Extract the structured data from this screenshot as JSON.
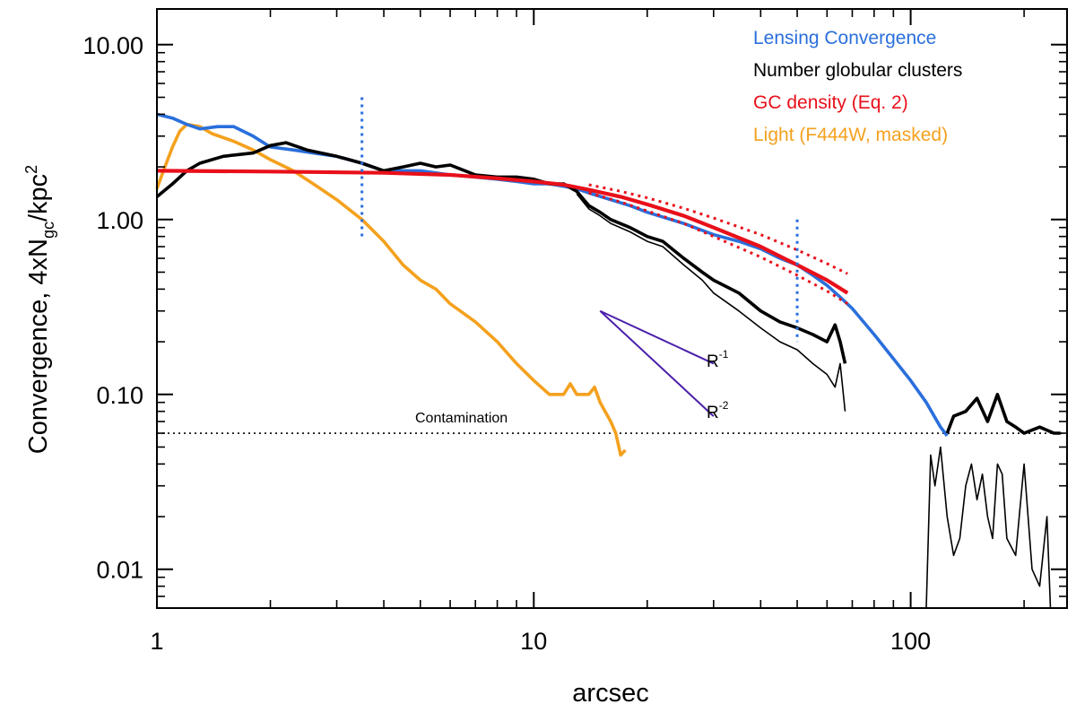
{
  "chart_data": {
    "type": "line",
    "xlabel": "arcsec",
    "ylabel_parts": [
      "Convergence, 4xN",
      "gc",
      "/kpc",
      "2"
    ],
    "x_scale": "log",
    "y_scale": "log",
    "xlim": [
      1,
      260
    ],
    "ylim": [
      0.006,
      16
    ],
    "x_ticks": [
      1,
      10,
      100
    ],
    "x_tick_labels": [
      "1",
      "10",
      "100"
    ],
    "y_ticks": [
      0.01,
      0.1,
      1,
      10
    ],
    "y_tick_labels": [
      "0.01",
      "0.10",
      "1.00",
      "10.00"
    ],
    "legend_position": "top-right",
    "colors": {
      "lensing": "#2a6fdc",
      "gc_number": "#000000",
      "gc_density": "#e8101a",
      "light": "#f4a11e",
      "slope": "#4b1faa"
    },
    "legend": [
      {
        "label": "Lensing Convergence",
        "color": "#2a6fdc"
      },
      {
        "label": "Number globular clusters",
        "color": "#000000"
      },
      {
        "label": "GC density (Eq. 2)",
        "color": "#e8101a"
      },
      {
        "label": "Light (F444W, masked)",
        "color": "#f4a11e"
      }
    ],
    "series": [
      {
        "key": "lensing",
        "x": [
          1.0,
          1.1,
          1.2,
          1.3,
          1.45,
          1.6,
          1.8,
          2.0,
          2.3,
          2.6,
          3.0,
          3.5,
          4.0,
          5.0,
          6.0,
          7.0,
          8.0,
          9.0,
          10.0,
          11.0,
          12.0,
          13.0,
          14.0,
          16.0,
          18.0,
          20.0,
          25.0,
          30.0,
          35.0,
          40.0,
          45.0,
          50.0,
          55.0,
          60.0,
          65.0,
          70.0,
          80.0,
          90.0,
          100.0,
          110.0,
          120.0,
          125.0
        ],
        "y": [
          4.0,
          3.8,
          3.5,
          3.3,
          3.4,
          3.4,
          3.0,
          2.6,
          2.5,
          2.4,
          2.3,
          2.1,
          1.9,
          1.9,
          1.8,
          1.75,
          1.7,
          1.65,
          1.6,
          1.6,
          1.55,
          1.5,
          1.42,
          1.3,
          1.2,
          1.1,
          0.95,
          0.82,
          0.75,
          0.68,
          0.6,
          0.55,
          0.48,
          0.42,
          0.36,
          0.31,
          0.22,
          0.16,
          0.12,
          0.09,
          0.065,
          0.058
        ]
      },
      {
        "key": "gc_number",
        "x": [
          1.0,
          1.1,
          1.2,
          1.3,
          1.5,
          1.8,
          2.0,
          2.2,
          2.5,
          3.0,
          3.5,
          4.0,
          4.5,
          5.0,
          5.5,
          6.0,
          7.0,
          8.0,
          9.0,
          10.0,
          11.0,
          12.0,
          13.0,
          14.0,
          15.0,
          16.0,
          18.0,
          20.0,
          22.0,
          25.0,
          28.0,
          30.0,
          35.0,
          40.0,
          45.0,
          50.0,
          55.0,
          60.0,
          63.0,
          65.0,
          67.0
        ],
        "y": [
          1.35,
          1.6,
          1.9,
          2.1,
          2.3,
          2.4,
          2.65,
          2.75,
          2.5,
          2.3,
          2.1,
          1.9,
          2.0,
          2.1,
          2.0,
          2.05,
          1.8,
          1.75,
          1.75,
          1.7,
          1.6,
          1.6,
          1.45,
          1.2,
          1.1,
          1.0,
          0.9,
          0.8,
          0.75,
          0.6,
          0.5,
          0.45,
          0.38,
          0.3,
          0.26,
          0.24,
          0.22,
          0.2,
          0.25,
          0.2,
          0.15
        ]
      },
      {
        "key": "gc_number_thin",
        "x": [
          13.0,
          14.0,
          15.0,
          16.0,
          18.0,
          20.0,
          22.0,
          25.0,
          28.0,
          30.0,
          35.0,
          40.0,
          45.0,
          50.0,
          55.0,
          60.0,
          63.0,
          65.0,
          67.0
        ],
        "y": [
          1.4,
          1.15,
          1.05,
          0.95,
          0.85,
          0.75,
          0.7,
          0.55,
          0.45,
          0.38,
          0.3,
          0.24,
          0.2,
          0.18,
          0.15,
          0.13,
          0.11,
          0.15,
          0.08
        ]
      },
      {
        "key": "gc_number_outer",
        "x": [
          125.0,
          130.0,
          140.0,
          150.0,
          160.0,
          170.0,
          180.0,
          190.0,
          200.0,
          220.0,
          240.0,
          250.0
        ],
        "y": [
          0.06,
          0.075,
          0.08,
          0.095,
          0.07,
          0.1,
          0.07,
          0.065,
          0.06,
          0.065,
          0.06,
          0.06
        ]
      },
      {
        "key": "gc_number_outer_thin",
        "x": [
          110.0,
          113.0,
          116.0,
          120.0,
          125.0,
          130.0,
          135.0,
          140.0,
          145.0,
          150.0,
          155.0,
          160.0,
          165.0,
          170.0,
          175.0,
          180.0,
          190.0,
          200.0,
          210.0,
          220.0,
          230.0,
          235.0
        ],
        "y": [
          0.005,
          0.045,
          0.03,
          0.05,
          0.02,
          0.012,
          0.015,
          0.03,
          0.04,
          0.025,
          0.035,
          0.02,
          0.015,
          0.04,
          0.035,
          0.015,
          0.012,
          0.04,
          0.01,
          0.008,
          0.02,
          0.005
        ]
      },
      {
        "key": "gc_density",
        "x": [
          1.0,
          2.0,
          4.0,
          6.0,
          8.0,
          10.0,
          12.0,
          14.0,
          17.0,
          20.0,
          25.0,
          30.0,
          40.0,
          50.0,
          60.0,
          68.0
        ],
        "y": [
          1.9,
          1.88,
          1.85,
          1.8,
          1.72,
          1.65,
          1.58,
          1.48,
          1.35,
          1.22,
          1.05,
          0.9,
          0.7,
          0.55,
          0.45,
          0.38
        ]
      },
      {
        "key": "gc_density_upper",
        "x": [
          14.0,
          17.0,
          20.0,
          25.0,
          30.0,
          40.0,
          50.0,
          60.0,
          68.0
        ],
        "y": [
          1.58,
          1.45,
          1.33,
          1.16,
          1.02,
          0.82,
          0.67,
          0.56,
          0.49
        ]
      },
      {
        "key": "gc_density_lower",
        "x": [
          14.0,
          17.0,
          20.0,
          25.0,
          30.0,
          40.0,
          50.0,
          60.0,
          68.0
        ],
        "y": [
          1.42,
          1.26,
          1.12,
          0.95,
          0.8,
          0.61,
          0.48,
          0.39,
          0.33
        ]
      },
      {
        "key": "light",
        "x": [
          1.0,
          1.05,
          1.1,
          1.15,
          1.2,
          1.3,
          1.4,
          1.6,
          1.8,
          2.0,
          2.3,
          2.6,
          3.0,
          3.5,
          4.0,
          4.5,
          5.0,
          5.5,
          6.0,
          7.0,
          8.0,
          9.0,
          10.0,
          11.0,
          12.0,
          12.5,
          13.0,
          14.0,
          14.5,
          15.0,
          16.0,
          16.5,
          17.0,
          17.5
        ],
        "y": [
          1.5,
          2.0,
          2.6,
          3.2,
          3.5,
          3.4,
          3.1,
          2.8,
          2.5,
          2.2,
          1.9,
          1.6,
          1.3,
          1.0,
          0.75,
          0.55,
          0.45,
          0.4,
          0.33,
          0.26,
          0.2,
          0.15,
          0.12,
          0.1,
          0.1,
          0.115,
          0.1,
          0.1,
          0.11,
          0.09,
          0.07,
          0.06,
          0.045,
          0.048
        ]
      }
    ],
    "vertical_markers": [
      {
        "x": 3.5,
        "y_range": [
          0.8,
          5.0
        ],
        "color": "#2a6fdc"
      },
      {
        "x": 50.0,
        "y_range": [
          0.2,
          1.0
        ],
        "color": "#2a6fdc"
      }
    ],
    "reference_lines": [
      {
        "label": "R",
        "sup": "-1",
        "from": [
          15.0,
          0.3
        ],
        "to": [
          30.0,
          0.15
        ]
      },
      {
        "label": "R",
        "sup": "-2",
        "from": [
          15.0,
          0.3
        ],
        "to": [
          30.0,
          0.075
        ]
      }
    ],
    "contamination": {
      "y": 0.06,
      "label": "Contamination"
    }
  }
}
